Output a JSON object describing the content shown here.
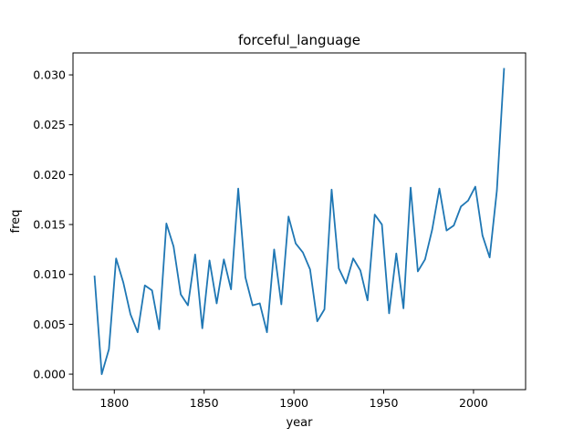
{
  "chart_data": {
    "type": "line",
    "title": "forceful_language",
    "xlabel": "year",
    "ylabel": "freq",
    "xlim": [
      1777,
      2029
    ],
    "ylim": [
      -0.00155,
      0.0322
    ],
    "x_ticks": [
      1800,
      1850,
      1900,
      1950,
      2000
    ],
    "y_ticks": [
      0.0,
      0.005,
      0.01,
      0.015,
      0.02,
      0.025,
      0.03
    ],
    "x_tick_labels": [
      "1800",
      "1850",
      "1900",
      "1950",
      "2000"
    ],
    "y_tick_labels": [
      "0.000",
      "0.005",
      "0.010",
      "0.015",
      "0.020",
      "0.025",
      "0.030"
    ],
    "grid": false,
    "line_color": "#1f77b4",
    "series": [
      {
        "x": [
          1789,
          1793,
          1797,
          1801,
          1805,
          1809,
          1813,
          1817,
          1821,
          1825,
          1829,
          1833,
          1837,
          1841,
          1845,
          1849,
          1853,
          1857,
          1861,
          1865,
          1869,
          1873,
          1877,
          1881,
          1885,
          1889,
          1893,
          1897,
          1901,
          1905,
          1909,
          1913,
          1917,
          1921,
          1925,
          1929,
          1933,
          1937,
          1941,
          1945,
          1949,
          1953,
          1957,
          1961,
          1965,
          1969,
          1973,
          1977,
          1981,
          1985,
          1989,
          1993,
          1997,
          2001,
          2005,
          2009,
          2013,
          2017
        ],
        "values": [
          0.0098,
          0.0,
          0.0025,
          0.0116,
          0.0092,
          0.006,
          0.0042,
          0.0089,
          0.0084,
          0.0045,
          0.0151,
          0.0128,
          0.008,
          0.0069,
          0.012,
          0.0046,
          0.0114,
          0.0071,
          0.0115,
          0.0085,
          0.0186,
          0.0097,
          0.0069,
          0.0071,
          0.0042,
          0.0125,
          0.007,
          0.0158,
          0.0131,
          0.0122,
          0.0105,
          0.0053,
          0.0065,
          0.0185,
          0.0106,
          0.0091,
          0.0116,
          0.0104,
          0.0074,
          0.016,
          0.015,
          0.0061,
          0.0121,
          0.0066,
          0.0187,
          0.0103,
          0.0115,
          0.0145,
          0.0186,
          0.0144,
          0.0149,
          0.0168,
          0.0174,
          0.0188,
          0.0139,
          0.0117,
          0.0184,
          0.0306
        ]
      }
    ]
  }
}
